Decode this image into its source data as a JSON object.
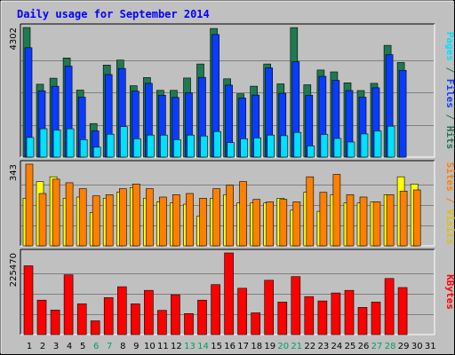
{
  "chart_data": {
    "type": "bar",
    "title": "Daily usage for September 2014",
    "days": [
      "1",
      "2",
      "3",
      "4",
      "5",
      "6",
      "7",
      "8",
      "9",
      "10",
      "11",
      "12",
      "13",
      "14",
      "15",
      "16",
      "17",
      "18",
      "19",
      "20",
      "21",
      "22",
      "23",
      "24",
      "25",
      "26",
      "27",
      "28",
      "29",
      "30",
      "31"
    ],
    "weekend_days": [
      "6",
      "7",
      "13",
      "14",
      "20",
      "21",
      "27",
      "28"
    ],
    "panels": [
      {
        "name": "hits-files-pages",
        "max_label": "4302",
        "ymax": 4302,
        "series": [
          {
            "name": "Hits",
            "color": "#1e7a50",
            "values": [
              4302,
              2420,
              2620,
              3290,
              2225,
              1115,
              3055,
              3220,
              2370,
              2640,
              2215,
              2215,
              2625,
              3090,
              4270,
              2600,
              2100,
              2355,
              3090,
              2430,
              4300,
              2400,
              2890,
              2830,
              2465,
              2210,
              2450,
              3710,
              3140,
              0,
              0
            ]
          },
          {
            "name": "Files",
            "color": "#0a3cff",
            "values": [
              3630,
              2200,
              2350,
              3020,
              1990,
              870,
              2740,
              2940,
              2190,
              2450,
              2055,
              1980,
              2130,
              2645,
              4070,
              2390,
              1960,
              2060,
              2960,
              2120,
              3165,
              2055,
              2680,
              2545,
              2210,
              1990,
              2300,
              3400,
              2880,
              0,
              0
            ]
          },
          {
            "name": "Pages",
            "color": "#00e0ff",
            "values": [
              650,
              940,
              900,
              940,
              580,
              330,
              760,
              1015,
              610,
              730,
              730,
              580,
              730,
              700,
              850,
              480,
              610,
              640,
              730,
              710,
              820,
              370,
              750,
              620,
              500,
              770,
              870,
              1025,
              0,
              0,
              0
            ]
          }
        ]
      },
      {
        "name": "visits-sites",
        "max_label": "343",
        "ymax": 343,
        "series": [
          {
            "name": "Visits",
            "color": "#ffff00",
            "values": [
              200,
              270,
              290,
              200,
              205,
              140,
              200,
              225,
              245,
              200,
              185,
              180,
              175,
              125,
              200,
              215,
              180,
              180,
              180,
              200,
              150,
              225,
              145,
              215,
              180,
              180,
              185,
              215,
              290,
              260,
              0
            ]
          },
          {
            "name": "Sites",
            "color": "#ff8000",
            "values": [
              343,
              220,
              280,
              265,
              240,
              210,
              215,
              240,
              260,
              240,
              205,
              215,
              220,
              200,
              240,
              255,
              270,
              195,
              185,
              195,
              185,
              290,
              225,
              300,
              215,
              205,
              185,
              215,
              230,
              235,
              0
            ]
          }
        ]
      },
      {
        "name": "kbytes",
        "max_label": "225470",
        "ymax": 225470,
        "series": [
          {
            "name": "KBytes",
            "color": "#ff0000",
            "values": [
              190000,
              95000,
              68000,
              165000,
              85000,
              38000,
              102000,
              132000,
              85000,
              122000,
              67000,
              110000,
              58000,
              95000,
              138000,
              225470,
              128000,
              60000,
              150000,
              90000,
              160000,
              105000,
              93000,
              115000,
              122000,
              75000,
              90000,
              155000,
              130000,
              0,
              0
            ]
          }
        ]
      }
    ],
    "right_labels": [
      {
        "panel": "hits-files-pages",
        "parts": [
          {
            "text": "Pages",
            "color": "#00e0ff"
          },
          {
            "text": " / ",
            "color": "#1e7a50"
          },
          {
            "text": "Files",
            "color": "#0a3cff"
          },
          {
            "text": " / ",
            "color": "#1e7a50"
          },
          {
            "text": "Hits",
            "color": "#1e7a50"
          }
        ]
      },
      {
        "panel": "visits-sites",
        "parts": [
          {
            "text": "Sites",
            "color": "#ff8000"
          },
          {
            "text": " / ",
            "color": "#ff8000"
          },
          {
            "text": "Visits",
            "color": "#e0c000"
          }
        ]
      },
      {
        "panel": "kbytes",
        "parts": [
          {
            "text": "KBytes",
            "color": "#ff0000"
          }
        ]
      }
    ],
    "colors": {
      "background": "#c0c0c0",
      "frame": "#000000",
      "title": "#0000ff",
      "weekday_tick": "#000000",
      "weekend_tick": "#00a060",
      "gridline": "#808080"
    }
  }
}
